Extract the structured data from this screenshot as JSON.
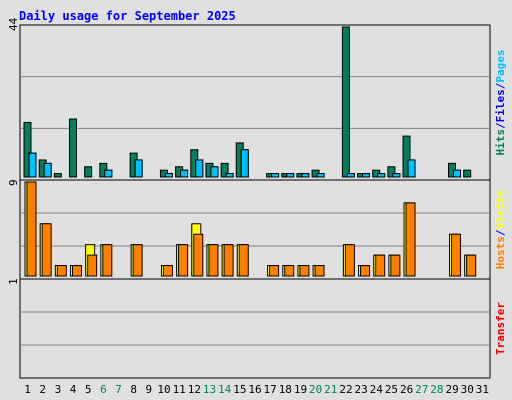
{
  "chart_data": {
    "type": "bar",
    "title": "Daily usage for September 2025",
    "categories": [
      "1",
      "2",
      "3",
      "4",
      "5",
      "6",
      "7",
      "8",
      "9",
      "10",
      "11",
      "12",
      "13",
      "14",
      "15",
      "16",
      "17",
      "18",
      "19",
      "20",
      "21",
      "22",
      "23",
      "24",
      "25",
      "26",
      "27",
      "28",
      "29",
      "30",
      "31"
    ],
    "weekend_days": [
      "6",
      "7",
      "13",
      "14",
      "20",
      "21",
      "27",
      "28"
    ],
    "panels": [
      {
        "id": "hits-files-pages",
        "max_label": "44",
        "ylim": [
          0,
          44
        ],
        "side_label": [
          "Hits",
          "/",
          "Files",
          "/",
          "Pages"
        ],
        "side_label_colors": [
          "#00805c",
          "#0000ff",
          "#0000ff",
          "#0000ff",
          "#00bfff"
        ],
        "grid": true,
        "series": [
          {
            "name": "Hits",
            "color": "#00805c",
            "values": [
              16,
              5,
              1,
              17,
              3,
              4,
              0,
              7,
              0,
              2,
              3,
              8,
              4,
              4,
              10,
              0,
              1,
              1,
              1,
              2,
              0,
              44,
              1,
              2,
              3,
              12,
              0,
              0,
              4,
              2,
              0
            ]
          },
          {
            "name": "Files",
            "color": "#00bfff",
            "values": [
              7,
              4,
              0,
              0,
              0,
              2,
              0,
              5,
              0,
              1,
              2,
              5,
              3,
              1,
              8,
              0,
              1,
              1,
              1,
              1,
              0,
              1,
              1,
              1,
              1,
              5,
              0,
              0,
              2,
              0,
              0
            ]
          },
          {
            "name": "Pages",
            "color": "#00bfff",
            "values": [
              7,
              4,
              0,
              0,
              0,
              2,
              0,
              5,
              0,
              1,
              2,
              5,
              3,
              1,
              8,
              0,
              1,
              1,
              1,
              1,
              0,
              1,
              1,
              1,
              1,
              5,
              0,
              0,
              2,
              0,
              0
            ]
          }
        ]
      },
      {
        "id": "hosts-visits",
        "max_label": "9",
        "ylim": [
          0,
          9
        ],
        "side_label": [
          "Hosts",
          "/",
          "Visits"
        ],
        "side_label_colors": [
          "#ff8000",
          "#0000ff",
          "#ffff00"
        ],
        "grid": true,
        "series": [
          {
            "name": "Visits",
            "color": "#ffff00",
            "values": [
              9,
              5,
              1,
              1,
              3,
              3,
              0,
              3,
              0,
              1,
              3,
              5,
              3,
              3,
              3,
              0,
              1,
              1,
              1,
              1,
              0,
              3,
              1,
              2,
              2,
              7,
              0,
              0,
              4,
              2,
              0
            ]
          },
          {
            "name": "Hosts",
            "color": "#ff8000",
            "values": [
              9,
              5,
              1,
              1,
              2,
              3,
              0,
              3,
              0,
              1,
              3,
              4,
              3,
              3,
              3,
              0,
              1,
              1,
              1,
              1,
              0,
              3,
              1,
              2,
              2,
              7,
              0,
              0,
              4,
              2,
              0
            ]
          }
        ]
      },
      {
        "id": "transfer",
        "max_label": "1",
        "ylim": [
          0,
          1
        ],
        "side_label": [
          "Transfer"
        ],
        "side_label_colors": [
          "#ff0000"
        ],
        "grid": true,
        "series": [
          {
            "name": "Transfer",
            "color": "#ff0000",
            "values": [
              0,
              0,
              0,
              0,
              0,
              0,
              0,
              0,
              0,
              0,
              0,
              0,
              0,
              0,
              0,
              0,
              0,
              0,
              0,
              0,
              0,
              0,
              0,
              0,
              0,
              0,
              0,
              0,
              0,
              0,
              0
            ]
          }
        ]
      }
    ],
    "colors": {
      "background": "#e0e0e0",
      "frame": "#000000",
      "gridline": "#808080",
      "title": "#0000ff",
      "weekday_label": "#000000",
      "weekend_label": "#00805c"
    }
  }
}
